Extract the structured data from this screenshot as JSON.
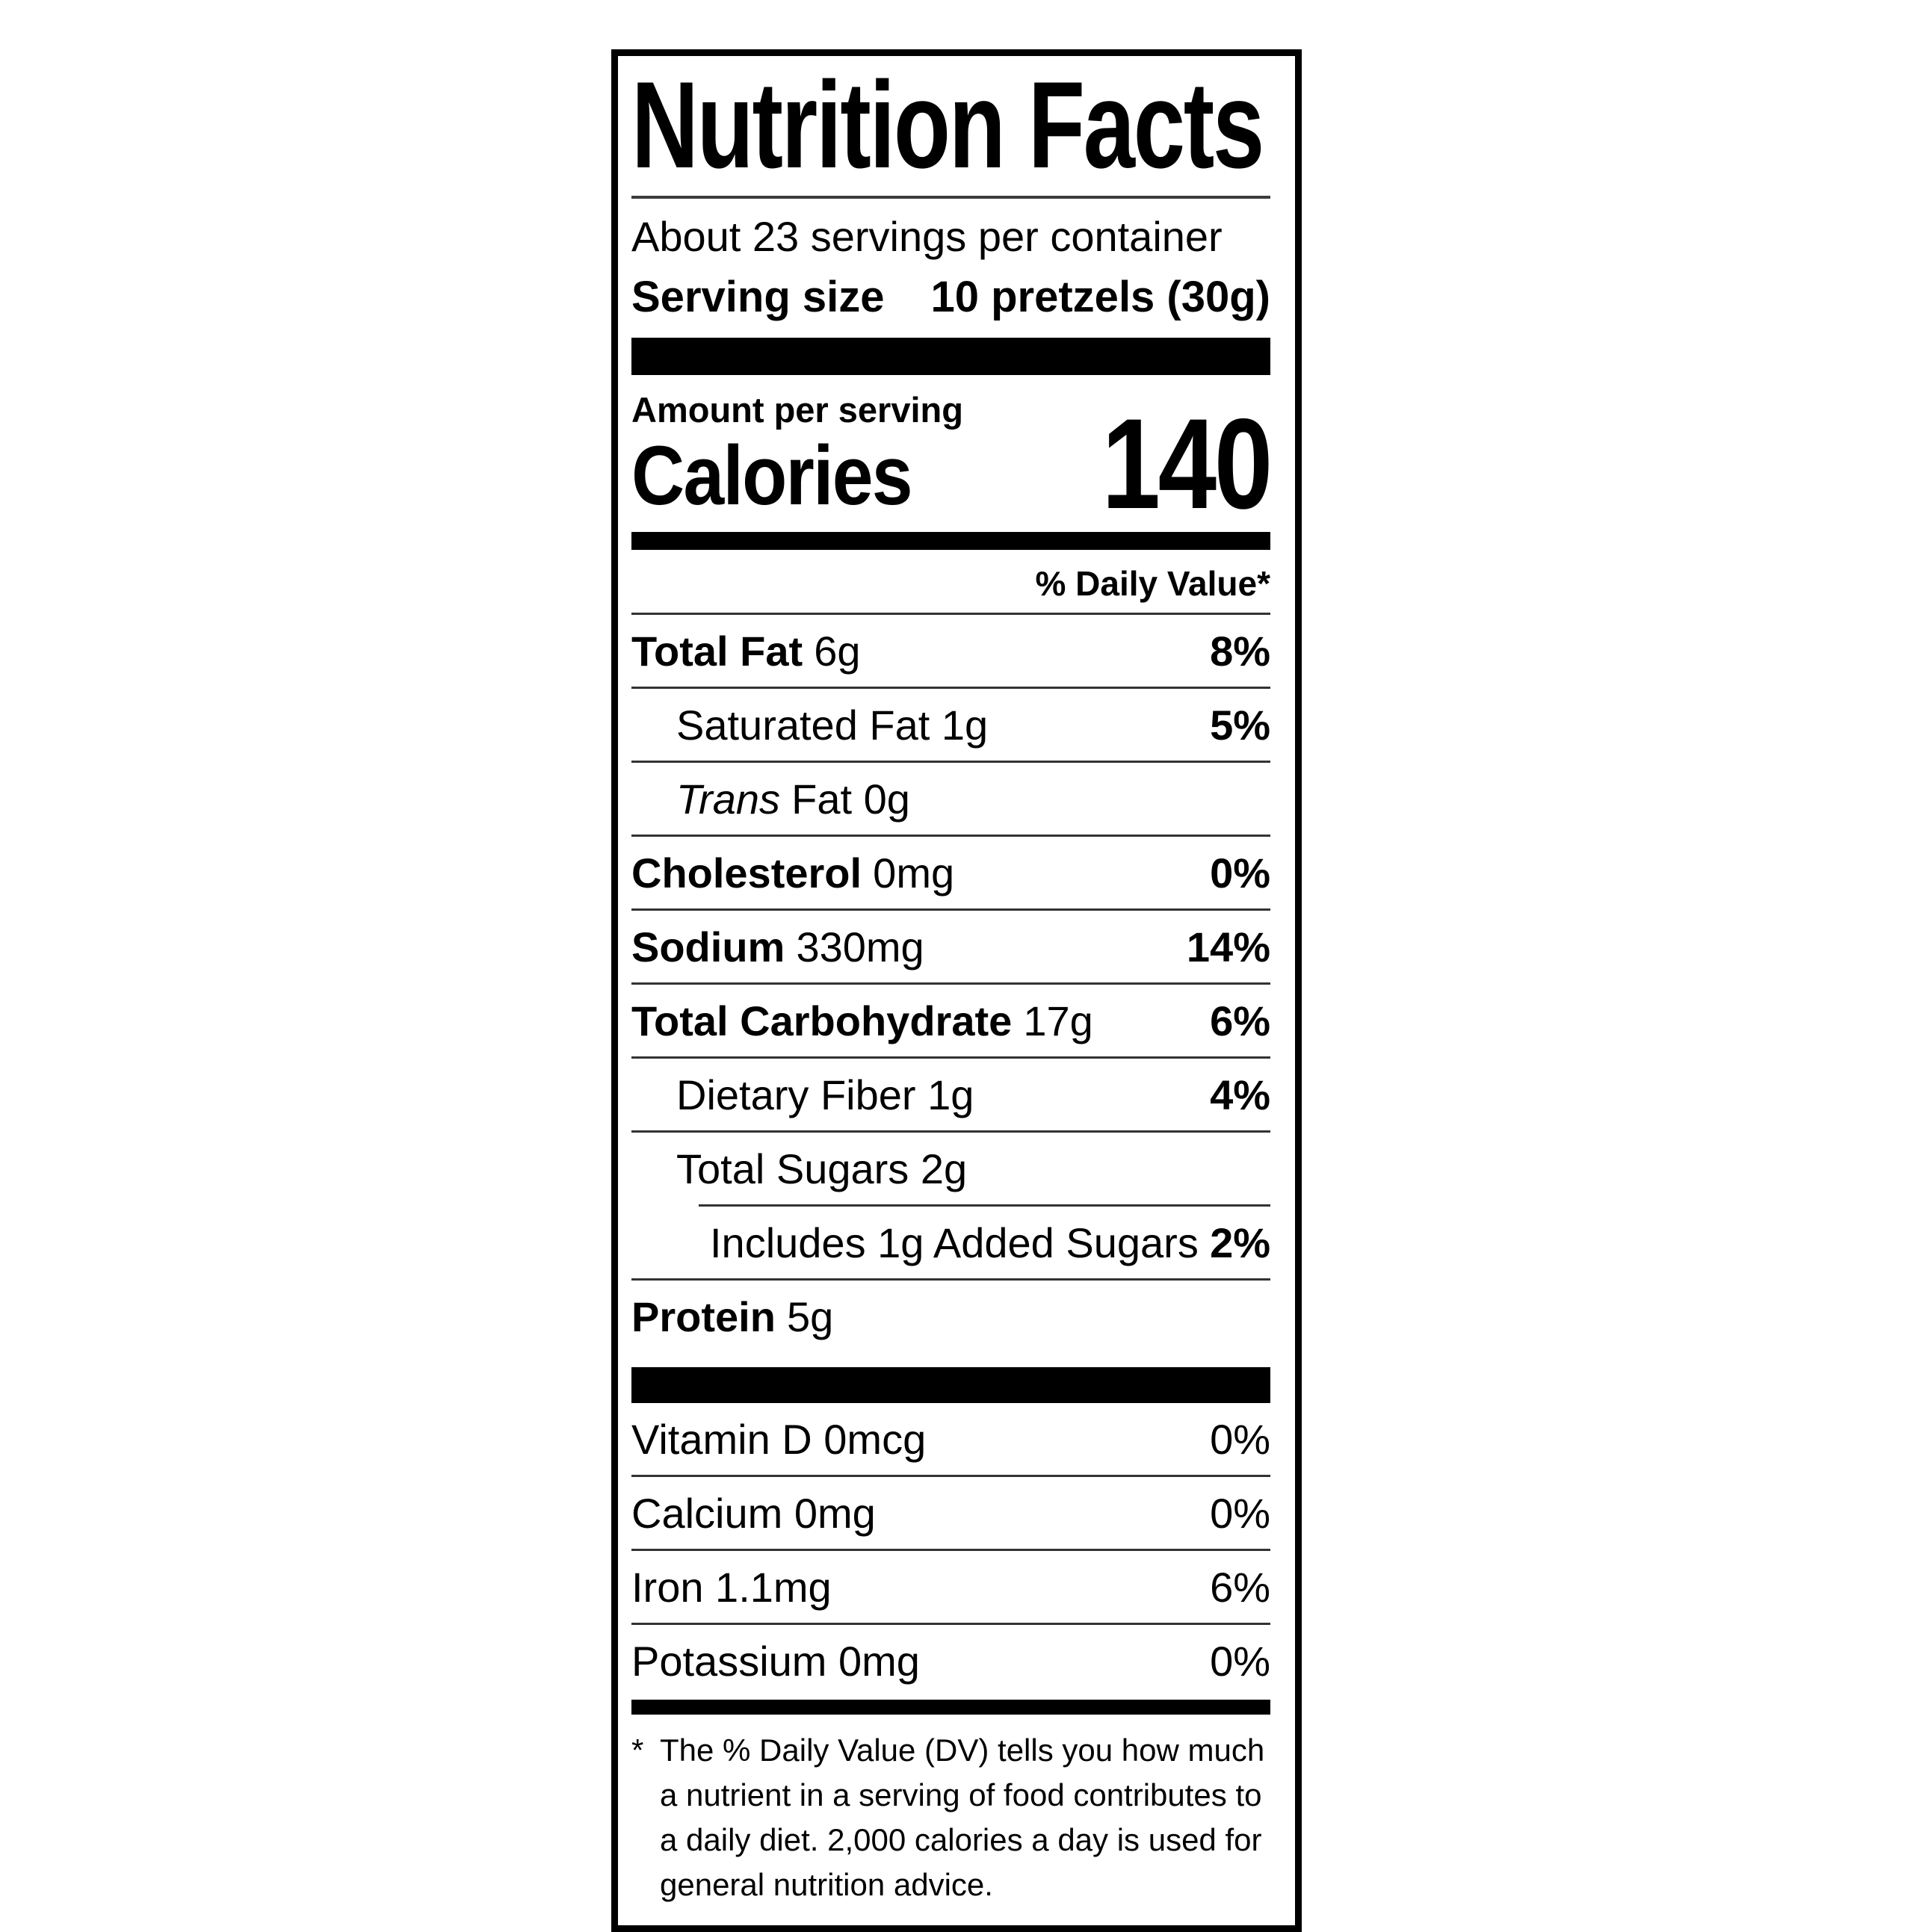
{
  "nutrition_label": {
    "title": "Nutrition Facts",
    "servings_per_container": "About 23 servings per container",
    "serving_size": {
      "label": "Serving size",
      "value": "10 pretzels (30g)"
    },
    "calories": {
      "context": "Amount per serving",
      "label": "Calories",
      "value": "140"
    },
    "daily_value_header": "% Daily Value*",
    "nutrient_rows": [
      {
        "name_bold": "Total Fat",
        "name_rest": "6g",
        "percent": "8%"
      },
      {
        "name_bold": "",
        "name_rest": "Saturated Fat 1g",
        "percent": "5%"
      },
      {
        "name_italic": "Trans",
        "name_rest": "Fat 0g",
        "percent": ""
      },
      {
        "name_bold": "Cholesterol",
        "name_rest": "0mg",
        "percent": "0%"
      },
      {
        "name_bold": "Sodium",
        "name_rest": "330mg",
        "percent": "14%"
      },
      {
        "name_bold": "Total Carbohydrate",
        "name_rest": "17g",
        "percent": "6%"
      },
      {
        "name_bold": "",
        "name_rest": "Dietary Fiber 1g",
        "percent": "4%"
      },
      {
        "name_bold": "",
        "name_rest": "Total Sugars 2g",
        "percent": ""
      },
      {
        "name_bold": "",
        "name_rest": "Includes 1g Added Sugars",
        "percent": "2%"
      },
      {
        "name_bold": "Protein",
        "name_rest": "5g",
        "percent": ""
      }
    ],
    "micronutrient_rows": [
      {
        "name": "Vitamin D 0mcg",
        "percent": "0%"
      },
      {
        "name": "Calcium 0mg",
        "percent": "0%"
      },
      {
        "name": "Iron 1.1mg",
        "percent": "6%"
      },
      {
        "name": "Potassium 0mg",
        "percent": "0%"
      }
    ],
    "footnote": {
      "marker": "*",
      "lines": [
        "The % Daily Value (DV) tells you how much",
        "a nutrient in a serving of food contributes to",
        "a daily diet. 2,000 calories a day is used for",
        "general nutrition advice."
      ]
    }
  }
}
